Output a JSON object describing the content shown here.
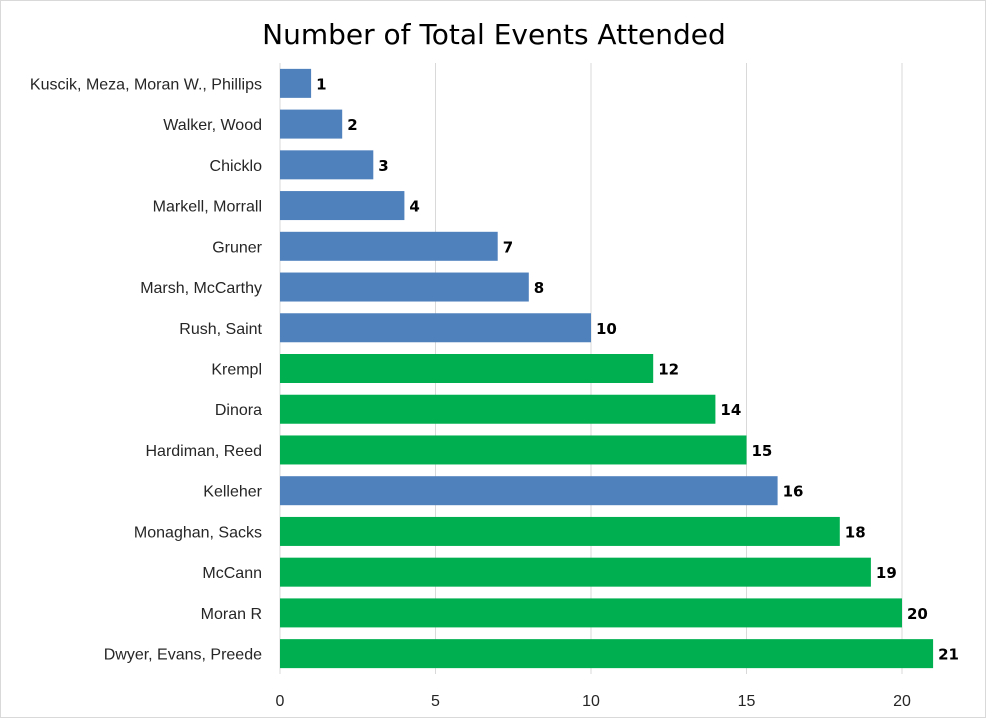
{
  "chart_data": {
    "type": "bar",
    "orientation": "horizontal",
    "title": "Number of Total Events Attended",
    "xlabel": "",
    "ylabel": "",
    "xlim": [
      0,
      22
    ],
    "x_ticks": [
      0,
      5,
      10,
      15,
      20
    ],
    "grid": true,
    "legend": "none",
    "colors": {
      "blue": "#4f81bd",
      "green": "#00b050"
    },
    "categories": [
      "Kuscik, Meza, Moran W., Phillips",
      "Walker, Wood",
      "Chicklo",
      "Markell, Morrall",
      "Gruner",
      "Marsh, McCarthy",
      "Rush, Saint",
      "Krempl",
      "Dinora",
      "Hardiman, Reed",
      "Kelleher",
      "Monaghan, Sacks",
      "McCann",
      "Moran R",
      "Dwyer, Evans, Preede"
    ],
    "values": [
      1,
      2,
      3,
      4,
      7,
      8,
      10,
      12,
      14,
      15,
      16,
      18,
      19,
      20,
      21
    ],
    "bar_colors": [
      "blue",
      "blue",
      "blue",
      "blue",
      "blue",
      "blue",
      "blue",
      "green",
      "green",
      "green",
      "blue",
      "green",
      "green",
      "green",
      "green"
    ]
  }
}
